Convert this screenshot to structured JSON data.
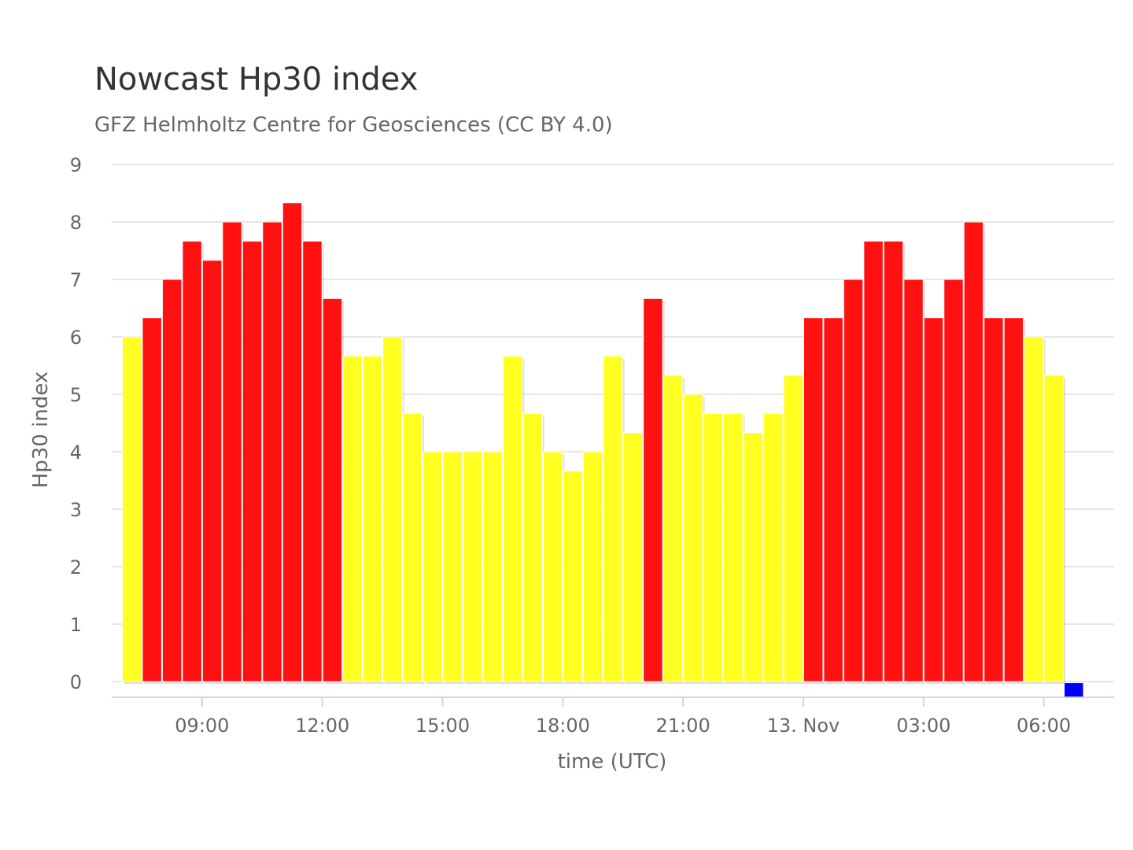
{
  "chart_data": {
    "type": "bar",
    "title": "Nowcast Hp30 index",
    "subtitle": "GFZ Helmholtz Centre for Geosciences (CC BY 4.0)",
    "xlabel": "time (UTC)",
    "ylabel": "Hp30 index",
    "ylim": [
      0,
      9
    ],
    "yticks": [
      "0",
      "1",
      "2",
      "3",
      "4",
      "5",
      "6",
      "7",
      "8",
      "9"
    ],
    "x_range": [
      "2025-11-12T07:00",
      "2025-11-13T07:30"
    ],
    "xticks": [
      {
        "time": "2025-11-12T09:00",
        "label": "09:00"
      },
      {
        "time": "2025-11-12T12:00",
        "label": "12:00"
      },
      {
        "time": "2025-11-12T15:00",
        "label": "15:00"
      },
      {
        "time": "2025-11-12T18:00",
        "label": "18:00"
      },
      {
        "time": "2025-11-12T21:00",
        "label": "21:00"
      },
      {
        "time": "2025-11-13T00:00",
        "label": "13. Nov"
      },
      {
        "time": "2025-11-13T03:00",
        "label": "03:00"
      },
      {
        "time": "2025-11-13T06:00",
        "label": "06:00"
      }
    ],
    "bar_start": "2025-11-12T07:00",
    "bar_interval_minutes": 30,
    "values": [
      6,
      6.333,
      7,
      7.667,
      7.333,
      8,
      7.667,
      8,
      8.333,
      7.667,
      6.667,
      5.667,
      5.667,
      6,
      4.667,
      4,
      4,
      4,
      4,
      5.667,
      4.667,
      4,
      3.667,
      4,
      5.667,
      4.333,
      6.667,
      5.333,
      5,
      4.667,
      4.667,
      4.333,
      4.667,
      5.333,
      6.333,
      6.333,
      7,
      7.667,
      7.667,
      7,
      6.333,
      7,
      8,
      6.333,
      6.333,
      6,
      5.333,
      0
    ],
    "colors": {
      "storm": "#ff1111",
      "moderate": "#ffff22",
      "quiet": "#0000ff",
      "grid": "#e6e6e6",
      "axis": "#ccd6eb"
    },
    "grid": true,
    "legend": "none"
  }
}
